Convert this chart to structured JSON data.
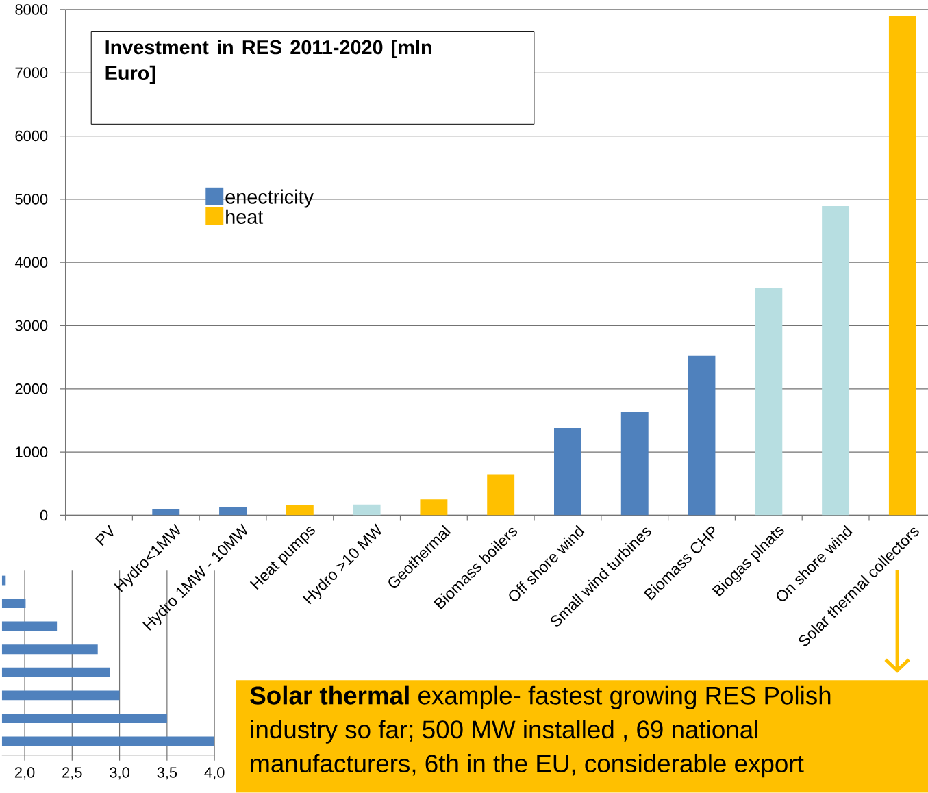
{
  "chart_data": [
    {
      "type": "bar",
      "title": "Investment in RES  2011-2020 [mln Euro]",
      "categories": [
        "PV",
        "Hydro<1MW",
        "Hydro 1MW - 10MW",
        "Heat pumps",
        "Hydro >10 MW",
        "Geothermal",
        "Biomass boilers",
        "Off shore wind",
        "Small wind turbines",
        "Biomass CHP",
        "Biogas plnats",
        "On shore wind",
        "Solar thermal collectors"
      ],
      "series": [
        {
          "name": "enectricity",
          "color": "#4f81bd",
          "values": [
            0,
            100,
            130,
            null,
            null,
            null,
            null,
            1380,
            1640,
            2520,
            null,
            null,
            null
          ]
        },
        {
          "name": "heat",
          "color": "#ffc000",
          "values": [
            null,
            null,
            null,
            160,
            null,
            250,
            650,
            null,
            null,
            null,
            null,
            null,
            7890
          ]
        },
        {
          "color": "#b7dee1",
          "values": [
            null,
            null,
            null,
            null,
            170,
            null,
            null,
            null,
            null,
            null,
            3590,
            4890,
            null
          ]
        }
      ],
      "ylim": [
        0,
        8000
      ],
      "yticks": [
        0,
        1000,
        2000,
        3000,
        4000,
        5000,
        6000,
        7000,
        8000
      ],
      "grid": "y",
      "legend": "left",
      "annotations": [
        "**Solar thermal** example- fastest growing RES Polish industry so far; 500 MW installed , 69 national manufacturers, 6th in the EU, considerable export"
      ]
    },
    {
      "type": "bar",
      "orientation": "horizontal",
      "categories": [
        null,
        null,
        null,
        null,
        null,
        null,
        null,
        null
      ],
      "values": [
        1.8,
        2.01,
        2.34,
        2.77,
        2.9,
        3.0,
        3.5,
        4.0
      ],
      "color": "#4f81bd",
      "xlim": [
        1.76,
        4.0
      ],
      "xticks": [
        {
          "value": 2.0,
          "label": "2,0"
        },
        {
          "value": 2.5,
          "label": "2,5"
        },
        {
          "value": 3.0,
          "label": "3,0"
        },
        {
          "value": 3.5,
          "label": "3,5"
        },
        {
          "value": 4.0,
          "label": "4,0"
        }
      ],
      "grid": "x",
      "tick_labels": "x"
    }
  ]
}
